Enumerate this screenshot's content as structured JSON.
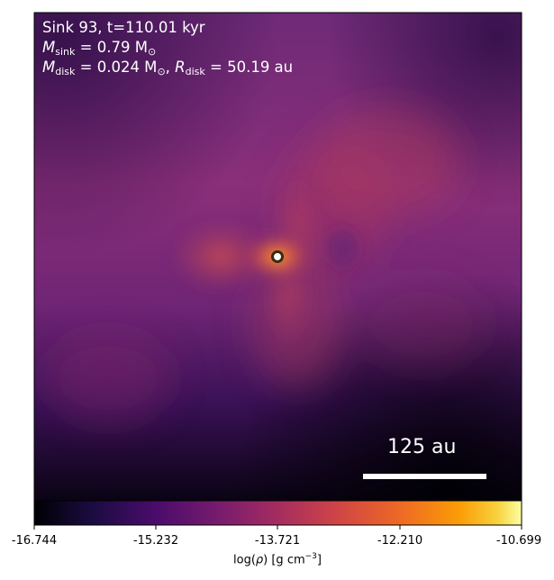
{
  "annotation": {
    "line1": "Sink 93, t=110.01 kyr",
    "msink_symbol": "M",
    "msink_sub": "sink",
    "msink_value": " = 0.79 M",
    "msink_unit_sub": "⊙",
    "mdisk_symbol": "M",
    "mdisk_sub": "disk",
    "mdisk_value": " = 0.024 M",
    "mdisk_unit_sub": "⊙",
    "rdisk_sep": ", ",
    "rdisk_symbol": "R",
    "rdisk_sub": "disk",
    "rdisk_value": " = 50.19 au"
  },
  "scalebar": {
    "label": "125 au"
  },
  "colorbar": {
    "ticks": [
      "-16.744",
      "-15.232",
      "-13.721",
      "-12.210",
      "-10.699"
    ],
    "label_prefix": "log(",
    "label_rho": "ρ",
    "label_suffix": ") [g cm",
    "label_exp": "−3",
    "label_close": "]",
    "colormap": "inferno/magma-like"
  },
  "sink_marker": "sink-particle-icon"
}
